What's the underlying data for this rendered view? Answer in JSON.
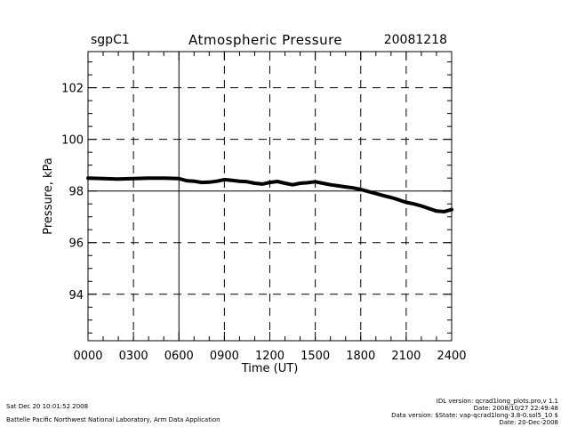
{
  "header": {
    "site": "sgpC1",
    "title": "Atmospheric Pressure",
    "date": "20081218"
  },
  "footer": {
    "left_line1": "Sat Dec 20 10:01:52 2008",
    "left_line2": "Battelle Pacific Northwest National Laboratory, Arm Data Application",
    "right_line1": "IDL version: qcrad1long_plots.pro,v 1.1",
    "right_line2": "Date: 2008/10/27 22:49:48",
    "right_line3": "Data version: $State: vap-qcrad1long-3.8-0.sol5_10 $",
    "right_line4": "Date: 20-Dec-2008"
  },
  "chart_data": {
    "type": "line",
    "title": "Atmospheric Pressure",
    "xlabel": "Time (UT)",
    "ylabel": "Pressure, kPa",
    "xlim": [
      0,
      24
    ],
    "ylim": [
      92.2,
      103.4
    ],
    "x_ticks": [
      0,
      3,
      6,
      9,
      12,
      15,
      18,
      21,
      24
    ],
    "x_tick_labels": [
      "0000",
      "0300",
      "0600",
      "0900",
      "1200",
      "1500",
      "1800",
      "2100",
      "2400"
    ],
    "y_ticks": [
      94,
      96,
      98,
      100,
      102
    ],
    "y_tick_labels": [
      "94",
      "96",
      "98",
      "100",
      "102"
    ],
    "grid": "dashed",
    "reference_lines": {
      "x": 6,
      "y": 98
    },
    "series": [
      {
        "x": [
          0,
          1,
          2,
          3,
          4,
          5,
          6,
          6.5,
          7,
          7.5,
          8,
          8.5,
          9,
          9.5,
          10,
          10.5,
          11,
          11.5,
          12,
          12.5,
          13,
          13.5,
          14,
          14.5,
          15,
          15.5,
          16,
          16.5,
          17,
          17.5,
          18,
          18.5,
          19,
          19.5,
          20,
          20.5,
          21,
          21.5,
          22,
          22.5,
          23,
          23.5,
          24
        ],
        "y": [
          98.5,
          98.48,
          98.46,
          98.48,
          98.5,
          98.5,
          98.48,
          98.4,
          98.38,
          98.33,
          98.34,
          98.38,
          98.44,
          98.41,
          98.38,
          98.36,
          98.3,
          98.27,
          98.33,
          98.37,
          98.3,
          98.24,
          98.3,
          98.32,
          98.36,
          98.3,
          98.24,
          98.2,
          98.16,
          98.12,
          98.06,
          97.98,
          97.9,
          97.82,
          97.75,
          97.66,
          97.56,
          97.5,
          97.42,
          97.32,
          97.22,
          97.2,
          97.28
        ]
      }
    ]
  }
}
